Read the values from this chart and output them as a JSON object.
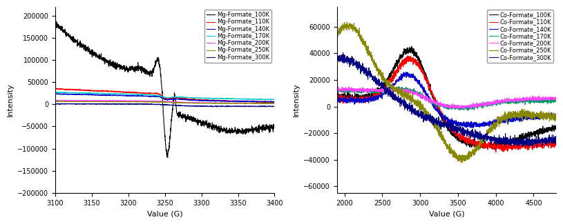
{
  "mg_xrange": [
    3100,
    3400
  ],
  "mg_ylim": [
    -200000,
    220000
  ],
  "mg_yticks": [
    -200000,
    -150000,
    -100000,
    -50000,
    0,
    50000,
    100000,
    150000,
    200000
  ],
  "mg_xticks": [
    3100,
    3150,
    3200,
    3250,
    3300,
    3350,
    3400
  ],
  "mg_xlabel": "Value (G)",
  "mg_ylabel": "Intensity",
  "mg_legend_labels": [
    "Mg-Formate_100K",
    "Mg-Formate_110K",
    "Mg-Formate_140K",
    "Mg-Formate_170K",
    "Mg-Formate_200K",
    "Mg-Formate_250K",
    "Mg-Formate_300K"
  ],
  "mg_colors": [
    "#000000",
    "#ff0000",
    "#0000cc",
    "#00cccc",
    "#ff44ff",
    "#888800",
    "#000080"
  ],
  "co_xrange": [
    1900,
    4800
  ],
  "co_ylim": [
    -65000,
    75000
  ],
  "co_yticks": [
    -60000,
    -40000,
    -20000,
    0,
    20000,
    40000,
    60000
  ],
  "co_xticks": [
    2000,
    2500,
    3000,
    3500,
    4000,
    4500
  ],
  "co_xlabel": "Value (G)",
  "co_ylabel": "Intensity",
  "co_legend_labels": [
    "Co-Formate_100K",
    "Co-Formate_110K",
    "Co-Formate_140K",
    "Co-Formate_170K",
    "Co-Formate_200K",
    "Co-Formate_250K",
    "Co-Formate_300K"
  ],
  "co_colors": [
    "#000000",
    "#ff0000",
    "#0000cc",
    "#009966",
    "#ff44ff",
    "#888800",
    "#000080"
  ],
  "noise_seed": 42
}
